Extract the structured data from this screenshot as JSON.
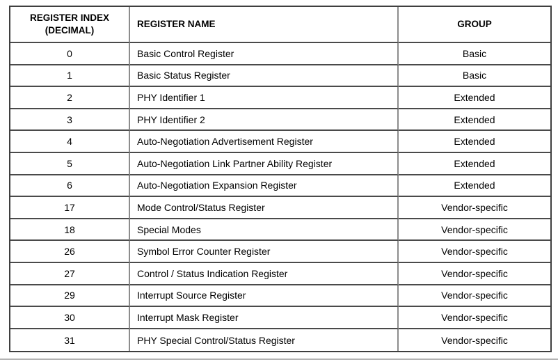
{
  "page": {
    "background_color": "#ffffff",
    "text_color": "#000000",
    "bottom_rule_color": "#b3b3b3"
  },
  "table": {
    "outer_border_color": "#3f3f3f",
    "horizontal_line_color": "#4a4a4a",
    "vertical_line_color": "#8c8c8c",
    "headers": [
      {
        "label": "REGISTER INDEX\n(DECIMAL)"
      },
      {
        "label": "REGISTER NAME"
      },
      {
        "label": "GROUP"
      }
    ],
    "rows": [
      {
        "index": "0",
        "name": "Basic Control Register",
        "group": "Basic"
      },
      {
        "index": "1",
        "name": "Basic Status Register",
        "group": "Basic"
      },
      {
        "index": "2",
        "name": "PHY Identifier 1",
        "group": "Extended"
      },
      {
        "index": "3",
        "name": "PHY Identifier 2",
        "group": "Extended"
      },
      {
        "index": "4",
        "name": "Auto-Negotiation Advertisement Register",
        "group": "Extended"
      },
      {
        "index": "5",
        "name": "Auto-Negotiation Link Partner Ability Register",
        "group": "Extended"
      },
      {
        "index": "6",
        "name": "Auto-Negotiation Expansion Register",
        "group": "Extended"
      },
      {
        "index": "17",
        "name": "Mode Control/Status Register",
        "group": "Vendor-specific"
      },
      {
        "index": "18",
        "name": "Special Modes",
        "group": "Vendor-specific"
      },
      {
        "index": "26",
        "name": "Symbol Error Counter Register",
        "group": "Vendor-specific"
      },
      {
        "index": "27",
        "name": "Control / Status Indication Register",
        "group": "Vendor-specific"
      },
      {
        "index": "29",
        "name": "Interrupt Source Register",
        "group": "Vendor-specific"
      },
      {
        "index": "30",
        "name": "Interrupt Mask Register",
        "group": "Vendor-specific"
      },
      {
        "index": "31",
        "name": "PHY Special Control/Status Register",
        "group": "Vendor-specific"
      }
    ]
  }
}
